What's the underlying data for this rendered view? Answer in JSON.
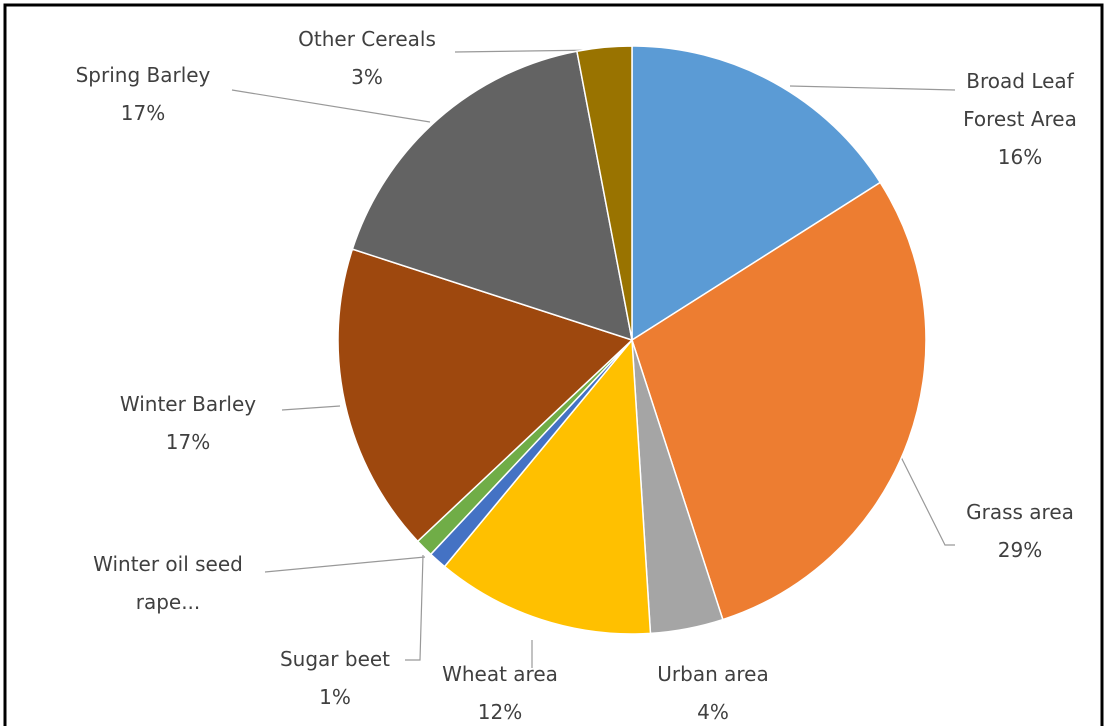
{
  "chart_data": {
    "type": "pie",
    "categories": [
      "Broad Leaf Forest Area",
      "Grass area",
      "Urban area",
      "Wheat area",
      "Sugar beet",
      "Winter oil seed rape...",
      "Winter Barley",
      "Spring Barley",
      "Other Cereals"
    ],
    "values": [
      16,
      29,
      4,
      12,
      1,
      1,
      17,
      17,
      3
    ],
    "value_labels": [
      "16%",
      "29%",
      "4%",
      "12%",
      "1%",
      null,
      "17%",
      "17%",
      "3%"
    ],
    "colors": [
      "#5b9bd5",
      "#ed7d31",
      "#a5a5a5",
      "#ffc000",
      "#4472c4",
      "#70ad47",
      "#9e480e",
      "#636363",
      "#997300"
    ]
  }
}
